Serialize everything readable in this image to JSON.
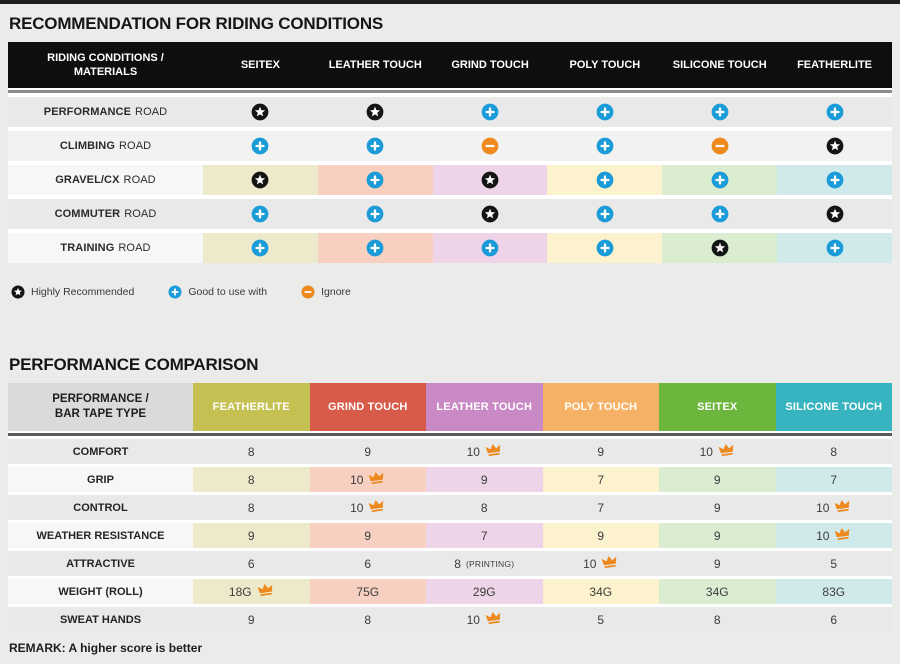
{
  "colors": {
    "page_bg": "#ebebe9",
    "top_bar": "#1c1c1c",
    "header_black": "#0e0e0e",
    "divider_t1": "#8a8a8a",
    "divider_t2": "#5a5a5a",
    "row_gray": "#e9e9e9",
    "row_light": "#f2f2f2",
    "label_light": "#f7f7f7",
    "blue": "#1b9bd7",
    "orange": "#ee8a1d",
    "star_black": "#141414",
    "t2_label_header_bg": "#dadada",
    "tints": [
      "#edeacc",
      "#f7d0c1",
      "#eed4e8",
      "#fdf2ce",
      "#dbedd1",
      "#d0e9eb"
    ],
    "t2_header_colors": [
      "#c4c051",
      "#d85a48",
      "#c989c5",
      "#f5b166",
      "#6db63d",
      "#38b4c0"
    ]
  },
  "riding_table": {
    "title": "RECOMMENDATION FOR RIDING CONDITIONS",
    "header_line1": "RIDING CONDITIONS /",
    "header_line2": "MATERIALS",
    "columns": [
      "SEITEX",
      "LEATHER TOUCH",
      "GRIND TOUCH",
      "POLY TOUCH",
      "SILICONE TOUCH",
      "FEATHERLITE"
    ],
    "rows": [
      {
        "label_bold": "PERFORMANCE",
        "label_rest": "ROAD",
        "bg": "gray",
        "cells": [
          "star",
          "star",
          "plus",
          "plus",
          "plus",
          "plus"
        ]
      },
      {
        "label_bold": "CLIMBING",
        "label_rest": "ROAD",
        "bg": "light",
        "cells": [
          "plus",
          "plus",
          "minus",
          "plus",
          "minus",
          "star"
        ]
      },
      {
        "label_bold": "GRAVEL/CX",
        "label_rest": "ROAD",
        "bg": "tint",
        "cells": [
          "star",
          "plus",
          "star",
          "plus",
          "plus",
          "plus"
        ]
      },
      {
        "label_bold": "COMMUTER",
        "label_rest": "ROAD",
        "bg": "gray",
        "cells": [
          "plus",
          "plus",
          "star",
          "plus",
          "plus",
          "star"
        ]
      },
      {
        "label_bold": "TRAINING",
        "label_rest": "ROAD",
        "bg": "tint",
        "cells": [
          "plus",
          "plus",
          "plus",
          "plus",
          "star",
          "plus"
        ]
      }
    ],
    "legend": [
      {
        "icon": "star",
        "label": "Highly Recommended"
      },
      {
        "icon": "plus",
        "label": "Good to use with"
      },
      {
        "icon": "minus",
        "label": "Ignore"
      }
    ]
  },
  "performance_table": {
    "title": "PERFORMANCE COMPARISON",
    "header_line1": "PERFORMANCE /",
    "header_line2": "BAR TAPE TYPE",
    "columns": [
      "FEATHERLITE",
      "GRIND TOUCH",
      "LEATHER TOUCH",
      "POLY TOUCH",
      "SEITEX",
      "SILICONE TOUCH"
    ],
    "rows": [
      {
        "label": "COMFORT",
        "bg": "gray",
        "cells": [
          {
            "text": "8"
          },
          {
            "text": "9"
          },
          {
            "text": "10",
            "crown": true
          },
          {
            "text": "9"
          },
          {
            "text": "10",
            "crown": true
          },
          {
            "text": "8"
          }
        ]
      },
      {
        "label": "GRIP",
        "bg": "tint",
        "cells": [
          {
            "text": "8"
          },
          {
            "text": "10",
            "crown": true
          },
          {
            "text": "9"
          },
          {
            "text": "7"
          },
          {
            "text": "9"
          },
          {
            "text": "7"
          }
        ]
      },
      {
        "label": "CONTROL",
        "bg": "gray",
        "cells": [
          {
            "text": "8"
          },
          {
            "text": "10",
            "crown": true
          },
          {
            "text": "8"
          },
          {
            "text": "7"
          },
          {
            "text": "9"
          },
          {
            "text": "10",
            "crown": true
          }
        ]
      },
      {
        "label": "WEATHER RESISTANCE",
        "bg": "tint",
        "cells": [
          {
            "text": "9"
          },
          {
            "text": "9"
          },
          {
            "text": "7"
          },
          {
            "text": "9"
          },
          {
            "text": "9"
          },
          {
            "text": "10",
            "crown": true
          }
        ]
      },
      {
        "label": "ATTRACTIVE",
        "bg": "gray",
        "cells": [
          {
            "text": "6"
          },
          {
            "text": "6"
          },
          {
            "text": "8",
            "note": "(PRINTING)"
          },
          {
            "text": "10",
            "crown": true
          },
          {
            "text": "9"
          },
          {
            "text": "5"
          }
        ]
      },
      {
        "label": "WEIGHT (ROLL)",
        "bg": "tint",
        "cells": [
          {
            "text": "18G",
            "crown": true
          },
          {
            "text": "75G"
          },
          {
            "text": "29G"
          },
          {
            "text": "34G"
          },
          {
            "text": "34G"
          },
          {
            "text": "83G"
          }
        ]
      },
      {
        "label": "SWEAT HANDS",
        "bg": "gray",
        "cells": [
          {
            "text": "9"
          },
          {
            "text": "8"
          },
          {
            "text": "10",
            "crown": true
          },
          {
            "text": "5"
          },
          {
            "text": "8"
          },
          {
            "text": "6"
          }
        ]
      }
    ],
    "remark": "REMARK: A higher score is better"
  }
}
